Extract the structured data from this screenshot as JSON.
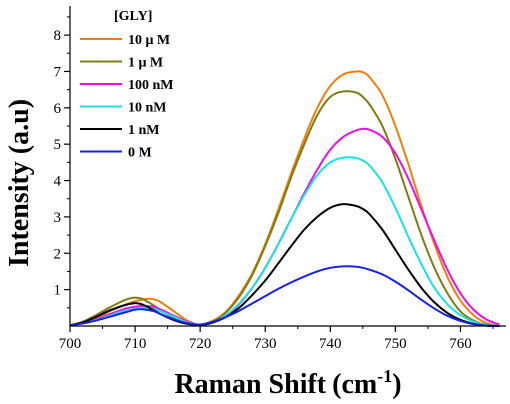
{
  "chart_data": {
    "type": "line",
    "xlabel_main": "Raman Shift",
    "xlabel_unit_open": "(cm",
    "xlabel_unit_exp": "-1",
    "xlabel_unit_close": ")",
    "ylabel": "Intensity (a.u)",
    "xlim": [
      700,
      767
    ],
    "ylim": [
      0,
      8.8
    ],
    "x_ticks": [
      700,
      710,
      720,
      730,
      740,
      750,
      760
    ],
    "y_ticks": [
      1,
      2,
      3,
      4,
      5,
      6,
      7,
      8
    ],
    "grid": false,
    "legend_title": "[GLY]",
    "legend_position": "top-left",
    "x": [
      700,
      702,
      704,
      706,
      708,
      709,
      710,
      711,
      712,
      713,
      714,
      716,
      718,
      720,
      722,
      724,
      726,
      728,
      730,
      732,
      734,
      736,
      738,
      740,
      742,
      744,
      745,
      746,
      748,
      750,
      752,
      754,
      756,
      758,
      760,
      762,
      764,
      766
    ],
    "series": [
      {
        "name": "10 μ M",
        "color": "#f07f0a",
        "values": [
          0.02,
          0.08,
          0.2,
          0.4,
          0.55,
          0.62,
          0.68,
          0.72,
          0.75,
          0.73,
          0.65,
          0.4,
          0.15,
          0.03,
          0.15,
          0.4,
          0.85,
          1.45,
          2.25,
          3.2,
          4.2,
          5.15,
          6.0,
          6.6,
          6.92,
          7.0,
          6.98,
          6.85,
          6.35,
          5.5,
          4.45,
          3.3,
          2.25,
          1.35,
          0.7,
          0.3,
          0.08,
          0.0
        ]
      },
      {
        "name": "1 μ M",
        "color": "#7f7c14",
        "values": [
          0.02,
          0.12,
          0.3,
          0.5,
          0.68,
          0.75,
          0.78,
          0.75,
          0.66,
          0.55,
          0.42,
          0.22,
          0.08,
          0.03,
          0.12,
          0.38,
          0.8,
          1.4,
          2.2,
          3.1,
          4.1,
          5.0,
          5.8,
          6.3,
          6.45,
          6.42,
          6.3,
          6.1,
          5.5,
          4.6,
          3.55,
          2.5,
          1.6,
          0.9,
          0.4,
          0.15,
          0.03,
          0.0
        ]
      },
      {
        "name": "100 nM",
        "color": "#ee0fe6",
        "values": [
          0.02,
          0.08,
          0.18,
          0.32,
          0.45,
          0.5,
          0.53,
          0.55,
          0.55,
          0.52,
          0.45,
          0.28,
          0.12,
          0.03,
          0.1,
          0.28,
          0.6,
          1.05,
          1.6,
          2.25,
          2.95,
          3.65,
          4.3,
          4.85,
          5.2,
          5.38,
          5.42,
          5.4,
          5.2,
          4.75,
          4.05,
          3.2,
          2.35,
          1.55,
          0.9,
          0.45,
          0.18,
          0.04
        ]
      },
      {
        "name": "10 nM",
        "color": "#17e3e3",
        "values": [
          0.02,
          0.08,
          0.16,
          0.28,
          0.4,
          0.44,
          0.48,
          0.5,
          0.5,
          0.47,
          0.4,
          0.25,
          0.1,
          0.03,
          0.1,
          0.3,
          0.62,
          1.05,
          1.6,
          2.25,
          2.95,
          3.6,
          4.15,
          4.5,
          4.63,
          4.62,
          4.55,
          4.42,
          3.95,
          3.25,
          2.45,
          1.7,
          1.05,
          0.6,
          0.3,
          0.12,
          0.03,
          0.0
        ]
      },
      {
        "name": "1 nM",
        "color": "#000000",
        "values": [
          0.02,
          0.1,
          0.25,
          0.42,
          0.55,
          0.6,
          0.63,
          0.6,
          0.52,
          0.42,
          0.32,
          0.16,
          0.06,
          0.03,
          0.1,
          0.25,
          0.5,
          0.85,
          1.25,
          1.72,
          2.2,
          2.65,
          3.0,
          3.25,
          3.35,
          3.3,
          3.22,
          3.08,
          2.65,
          2.1,
          1.55,
          1.05,
          0.65,
          0.36,
          0.17,
          0.06,
          0.01,
          0.0
        ]
      },
      {
        "name": "0 M",
        "color": "#1721e0",
        "values": [
          0.02,
          0.07,
          0.15,
          0.25,
          0.35,
          0.4,
          0.45,
          0.46,
          0.44,
          0.4,
          0.32,
          0.18,
          0.08,
          0.04,
          0.12,
          0.25,
          0.42,
          0.62,
          0.82,
          1.02,
          1.2,
          1.36,
          1.5,
          1.6,
          1.64,
          1.63,
          1.6,
          1.55,
          1.42,
          1.22,
          0.98,
          0.72,
          0.48,
          0.28,
          0.14,
          0.05,
          0.01,
          0.0
        ]
      }
    ]
  }
}
